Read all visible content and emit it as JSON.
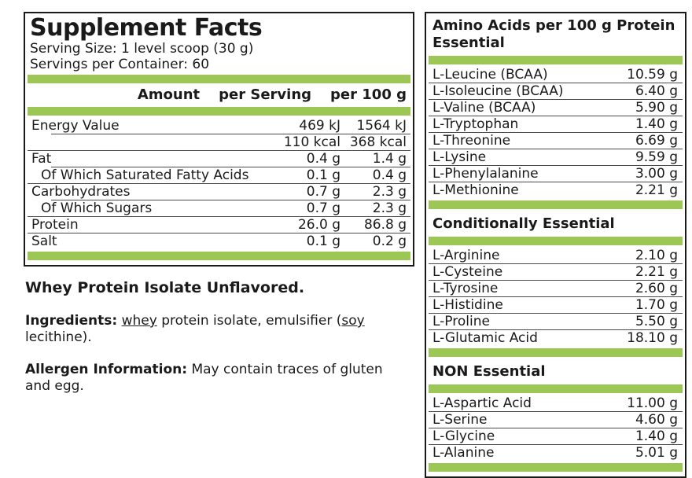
{
  "colors": {
    "accent_green": "#9CC754",
    "text_black": "#1A1A1A",
    "rule_gray": "#4A4A4A"
  },
  "facts": {
    "title": "Supplement Facts",
    "serving_size": "Serving Size: 1 level scoop (30 g)",
    "servings_per_container": "Servings per Container: 60",
    "header": {
      "amount": "Amount",
      "per_serving": "per Serving",
      "per_100g": "per 100 g"
    },
    "rows": [
      {
        "label": "Energy Value",
        "per_serving": "469 kJ",
        "per_100g": "1564 kJ",
        "indent": false,
        "separator": "none"
      },
      {
        "label": "",
        "per_serving": "110 kcal",
        "per_100g": "368 kcal",
        "indent": false,
        "separator": "indent"
      },
      {
        "label": "Fat",
        "per_serving": "0.4 g",
        "per_100g": "1.4 g",
        "indent": false,
        "separator": "full"
      },
      {
        "label": "Of Which Saturated Fatty Acids",
        "per_serving": "0.1 g",
        "per_100g": "0.4 g",
        "indent": true,
        "separator": "indent"
      },
      {
        "label": "Carbohydrates",
        "per_serving": "0.7 g",
        "per_100g": "2.3 g",
        "indent": false,
        "separator": "full"
      },
      {
        "label": "Of Which Sugars",
        "per_serving": "0.7 g",
        "per_100g": "2.3 g",
        "indent": true,
        "separator": "indent"
      },
      {
        "label": "Protein",
        "per_serving": "26.0 g",
        "per_100g": "86.8 g",
        "indent": false,
        "separator": "full"
      },
      {
        "label": "Salt",
        "per_serving": "0.1 g",
        "per_100g": "0.2 g",
        "indent": false,
        "separator": "full"
      }
    ]
  },
  "product_name": "Whey Protein Isolate Unflavored.",
  "ingredients": {
    "label": "Ingredients:",
    "segments": [
      {
        "text": "whey",
        "underline": true
      },
      {
        "text": " protein isolate, emulsifier (",
        "underline": false
      },
      {
        "text": "soy",
        "underline": true
      },
      {
        "text": " lecithine).",
        "underline": false
      }
    ]
  },
  "allergen": {
    "label": "Allergen Information:",
    "text": "May contain traces of gluten and egg."
  },
  "amino": {
    "sections": [
      {
        "title": "Amino Acids per 100 g Protein Essential",
        "rows": [
          {
            "name": "L-Leucine (BCAA)",
            "amount": "10.59 g"
          },
          {
            "name": "L-Isoleucine (BCAA)",
            "amount": "6.40 g"
          },
          {
            "name": "L-Valine (BCAA)",
            "amount": "5.90 g"
          },
          {
            "name": "L-Tryptophan",
            "amount": "1.40 g"
          },
          {
            "name": "L-Threonine",
            "amount": "6.69 g"
          },
          {
            "name": "L-Lysine",
            "amount": "9.59 g"
          },
          {
            "name": "L-Phenylalanine",
            "amount": "3.00 g"
          },
          {
            "name": "L-Methionine",
            "amount": "2.21 g"
          }
        ]
      },
      {
        "title": "Conditionally Essential",
        "rows": [
          {
            "name": "L-Arginine",
            "amount": "2.10 g"
          },
          {
            "name": "L-Cysteine",
            "amount": "2.21 g"
          },
          {
            "name": "L-Tyrosine",
            "amount": "2.60 g"
          },
          {
            "name": "L-Histidine",
            "amount": "1.70 g"
          },
          {
            "name": "L-Proline",
            "amount": "5.50 g"
          },
          {
            "name": "L-Glutamic Acid",
            "amount": "18.10 g"
          }
        ]
      },
      {
        "title": "NON Essential",
        "rows": [
          {
            "name": "L-Aspartic Acid",
            "amount": "11.00 g"
          },
          {
            "name": "L-Serine",
            "amount": "4.60 g"
          },
          {
            "name": "L-Glycine",
            "amount": "1.40 g"
          },
          {
            "name": "L-Alanine",
            "amount": "5.01 g"
          }
        ]
      }
    ]
  }
}
